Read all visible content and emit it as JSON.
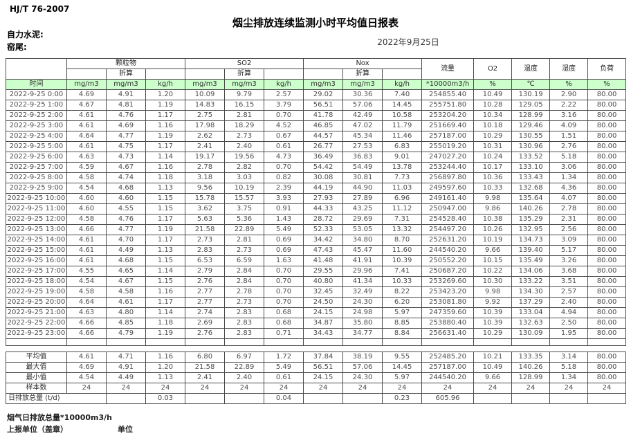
{
  "page": {
    "standard": "HJ/T 76-2007",
    "title": "烟尘排放连续监测小时平均值日报表",
    "company": "自力水泥:",
    "kiln": "窑尾:",
    "date": "2022年9月25日"
  },
  "table": {
    "time_header": "时间",
    "converted_label": "折算",
    "groups": [
      {
        "label": "颗粒物",
        "sub": [
          "mg/m3",
          "mg/m3",
          "kg/h"
        ]
      },
      {
        "label": "SO2",
        "sub": [
          "mg/m3",
          "mg/m3",
          "kg/h"
        ]
      },
      {
        "label": "Nox",
        "sub": [
          "mg/m3",
          "mg/m3",
          "kg/h"
        ]
      }
    ],
    "single_columns": [
      {
        "label": "流量",
        "unit": "*10000m3/h"
      },
      {
        "label": "O2",
        "unit": "%"
      },
      {
        "label": "温度",
        "unit": "℃"
      },
      {
        "label": "湿度",
        "unit": "%"
      },
      {
        "label": "负荷",
        "unit": "%"
      }
    ],
    "rows": [
      {
        "time": "2022-9-25 0:00",
        "values": [
          "4.69",
          "4.91",
          "1.20",
          "10.09",
          "9.79",
          "2.57",
          "29.02",
          "30.36",
          "7.40",
          "254855.40",
          "10.49",
          "130.19",
          "2.90",
          "80.00"
        ]
      },
      {
        "time": "2022-9-25 1:00",
        "values": [
          "4.67",
          "4.81",
          "1.19",
          "14.83",
          "16.15",
          "3.79",
          "56.51",
          "57.06",
          "14.45",
          "255751.80",
          "10.28",
          "129.05",
          "2.22",
          "80.00"
        ]
      },
      {
        "time": "2022-9-25 2:00",
        "values": [
          "4.61",
          "4.76",
          "1.17",
          "2.75",
          "2.81",
          "0.70",
          "41.78",
          "42.49",
          "10.58",
          "253204.20",
          "10.34",
          "128.99",
          "3.16",
          "80.00"
        ]
      },
      {
        "time": "2022-9-25 3:00",
        "values": [
          "4.61",
          "4.69",
          "1.16",
          "17.98",
          "18.29",
          "4.52",
          "46.85",
          "47.02",
          "11.79",
          "251669.40",
          "10.18",
          "129.46",
          "4.09",
          "80.00"
        ]
      },
      {
        "time": "2022-9-25 4:00",
        "values": [
          "4.64",
          "4.77",
          "1.19",
          "2.62",
          "2.73",
          "0.67",
          "44.57",
          "45.34",
          "11.46",
          "257187.00",
          "10.29",
          "130.55",
          "1.51",
          "80.00"
        ]
      },
      {
        "time": "2022-9-25 5:00",
        "values": [
          "4.61",
          "4.75",
          "1.17",
          "2.41",
          "2.40",
          "0.61",
          "26.77",
          "27.53",
          "6.83",
          "255019.20",
          "10.31",
          "130.96",
          "2.76",
          "80.00"
        ]
      },
      {
        "time": "2022-9-25 6:00",
        "values": [
          "4.63",
          "4.73",
          "1.14",
          "19.17",
          "19.56",
          "4.73",
          "36.49",
          "36.83",
          "9.01",
          "247027.20",
          "10.24",
          "133.52",
          "5.18",
          "80.00"
        ]
      },
      {
        "time": "2022-9-25 7:00",
        "values": [
          "4.59",
          "4.67",
          "1.16",
          "2.78",
          "2.82",
          "0.70",
          "54.42",
          "54.49",
          "13.78",
          "253244.40",
          "10.17",
          "133.10",
          "3.06",
          "80.00"
        ]
      },
      {
        "time": "2022-9-25 8:00",
        "values": [
          "4.58",
          "4.74",
          "1.18",
          "3.18",
          "3.03",
          "0.82",
          "30.08",
          "30.81",
          "7.73",
          "256897.80",
          "10.36",
          "133.43",
          "1.34",
          "80.00"
        ]
      },
      {
        "time": "2022-9-25 9:00",
        "values": [
          "4.54",
          "4.68",
          "1.13",
          "9.56",
          "10.19",
          "2.39",
          "44.19",
          "44.90",
          "11.03",
          "249597.60",
          "10.33",
          "132.68",
          "4.36",
          "80.00"
        ]
      },
      {
        "time": "2022-9-25 10:00",
        "values": [
          "4.60",
          "4.60",
          "1.15",
          "15.78",
          "15.57",
          "3.93",
          "27.93",
          "27.89",
          "6.96",
          "249161.40",
          "9.98",
          "135.64",
          "4.07",
          "80.00"
        ]
      },
      {
        "time": "2022-9-25 11:00",
        "values": [
          "4.60",
          "4.55",
          "1.15",
          "3.62",
          "3.75",
          "0.91",
          "44.33",
          "43.25",
          "11.12",
          "250947.00",
          "9.86",
          "140.26",
          "2.78",
          "80.00"
        ]
      },
      {
        "time": "2022-9-25 12:00",
        "values": [
          "4.58",
          "4.76",
          "1.17",
          "5.63",
          "5.36",
          "1.43",
          "28.72",
          "29.69",
          "7.31",
          "254528.40",
          "10.38",
          "135.29",
          "2.31",
          "80.00"
        ]
      },
      {
        "time": "2022-9-25 13:00",
        "values": [
          "4.66",
          "4.77",
          "1.19",
          "21.58",
          "22.89",
          "5.49",
          "52.33",
          "53.05",
          "13.32",
          "254497.20",
          "10.26",
          "132.95",
          "2.56",
          "80.00"
        ]
      },
      {
        "time": "2022-9-25 14:00",
        "values": [
          "4.61",
          "4.70",
          "1.17",
          "2.73",
          "2.81",
          "0.69",
          "34.42",
          "34.80",
          "8.70",
          "252631.20",
          "10.19",
          "134.73",
          "3.09",
          "80.00"
        ]
      },
      {
        "time": "2022-9-25 15:00",
        "values": [
          "4.61",
          "4.49",
          "1.13",
          "2.83",
          "2.73",
          "0.69",
          "47.43",
          "45.47",
          "11.60",
          "244540.20",
          "9.66",
          "139.40",
          "5.17",
          "80.00"
        ]
      },
      {
        "time": "2022-9-25 16:00",
        "values": [
          "4.61",
          "4.68",
          "1.15",
          "6.53",
          "6.59",
          "1.63",
          "41.48",
          "41.91",
          "10.39",
          "250552.20",
          "10.15",
          "135.49",
          "3.26",
          "80.00"
        ]
      },
      {
        "time": "2022-9-25 17:00",
        "values": [
          "4.55",
          "4.65",
          "1.14",
          "2.79",
          "2.84",
          "0.70",
          "29.55",
          "29.96",
          "7.41",
          "250687.20",
          "10.22",
          "134.06",
          "3.68",
          "80.00"
        ]
      },
      {
        "time": "2022-9-25 18:00",
        "values": [
          "4.54",
          "4.67",
          "1.15",
          "2.76",
          "2.84",
          "0.70",
          "40.80",
          "41.34",
          "10.33",
          "253269.60",
          "10.30",
          "133.22",
          "3.51",
          "80.00"
        ]
      },
      {
        "time": "2022-9-25 19:00",
        "values": [
          "4.58",
          "4.58",
          "1.16",
          "2.77",
          "2.78",
          "0.70",
          "32.45",
          "32.49",
          "8.22",
          "253423.20",
          "9.98",
          "134.30",
          "2.57",
          "80.00"
        ]
      },
      {
        "time": "2022-9-25 20:00",
        "values": [
          "4.64",
          "4.61",
          "1.17",
          "2.77",
          "2.73",
          "0.70",
          "24.50",
          "24.30",
          "6.20",
          "253081.80",
          "9.92",
          "137.29",
          "2.40",
          "80.00"
        ]
      },
      {
        "time": "2022-9-25 21:00",
        "values": [
          "4.63",
          "4.80",
          "1.14",
          "2.74",
          "2.83",
          "0.68",
          "24.15",
          "24.98",
          "5.97",
          "247359.60",
          "10.39",
          "133.04",
          "4.94",
          "80.00"
        ]
      },
      {
        "time": "2022-9-25 22:00",
        "values": [
          "4.66",
          "4.85",
          "1.18",
          "2.69",
          "2.83",
          "0.68",
          "34.87",
          "35.80",
          "8.85",
          "253880.40",
          "10.39",
          "132.63",
          "2.50",
          "80.00"
        ]
      },
      {
        "time": "2022-9-25 23:00",
        "values": [
          "4.66",
          "4.79",
          "1.19",
          "2.76",
          "2.83",
          "0.71",
          "34.43",
          "34.77",
          "8.84",
          "256631.40",
          "10.29",
          "130.09",
          "1.95",
          "80.00"
        ]
      }
    ],
    "summary": [
      {
        "label": "平均值",
        "values": [
          "4.61",
          "4.71",
          "1.16",
          "6.80",
          "6.97",
          "1.72",
          "37.84",
          "38.19",
          "9.55",
          "252485.20",
          "10.21",
          "133.35",
          "3.14",
          "80.00"
        ]
      },
      {
        "label": "最大值",
        "values": [
          "4.69",
          "4.91",
          "1.20",
          "21.58",
          "22.89",
          "5.49",
          "56.51",
          "57.06",
          "14.45",
          "257187.00",
          "10.49",
          "140.26",
          "5.18",
          "80.00"
        ]
      },
      {
        "label": "最小值",
        "values": [
          "4.54",
          "4.49",
          "1.13",
          "2.41",
          "2.40",
          "0.61",
          "24.15",
          "24.30",
          "5.97",
          "244540.20",
          "9.66",
          "128.99",
          "1.34",
          "80.00"
        ]
      },
      {
        "label": "样本数",
        "values": [
          "24",
          "24",
          "24",
          "24",
          "24",
          "24",
          "24",
          "24",
          "24",
          "24",
          "24",
          "24",
          "24",
          "24"
        ]
      }
    ],
    "daily_total": {
      "label": "日排放总量 (t/d)",
      "values": [
        "",
        "0.03",
        "",
        "",
        "0.04",
        "",
        "",
        "0.23",
        "605.96",
        "",
        "",
        "",
        ""
      ]
    }
  },
  "footer": {
    "flue_total": "烟气日排放总量*10000m3/h",
    "report_unit": "上报单位（盖章）",
    "unit": "单位"
  },
  "colors": {
    "header_green": "#CCFFCC",
    "border": "#4a4a4a"
  }
}
